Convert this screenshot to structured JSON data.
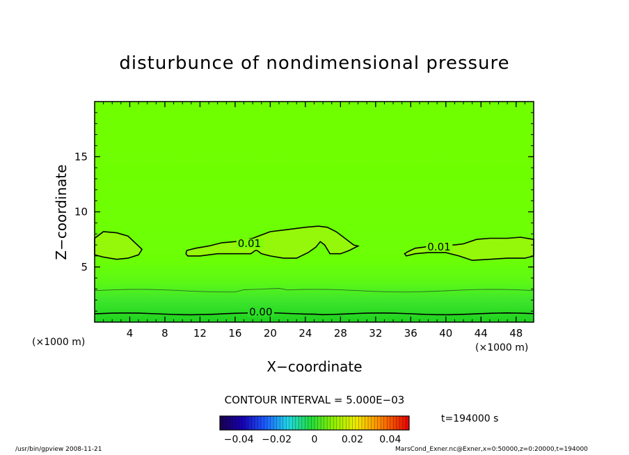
{
  "chart_data": {
    "type": "heatmap",
    "title": "disturbunce of nondimensional pressure",
    "xlabel": "X−coordinate",
    "ylabel": "Z−coordinate",
    "x_unit_left": "(×1000 m)",
    "x_unit_right": "(×1000 m)",
    "xlim": [
      0,
      50
    ],
    "ylim": [
      0,
      20
    ],
    "x_ticks": [
      4,
      8,
      12,
      16,
      20,
      24,
      28,
      32,
      36,
      40,
      44,
      48
    ],
    "y_ticks": [
      5,
      10,
      15
    ],
    "x_tick_labels": [
      "4",
      "8",
      "12",
      "16",
      "20",
      "24",
      "28",
      "32",
      "36",
      "40",
      "44",
      "48"
    ],
    "y_tick_labels": [
      "5",
      "10",
      "15"
    ],
    "contour_labels": [
      {
        "text": "0.01",
        "x": 16.3,
        "z": 7.0
      },
      {
        "text": "0.01",
        "x": 37.9,
        "z": 6.7
      },
      {
        "text": "0.00",
        "x": 17.6,
        "z": 0.8
      }
    ],
    "contour_interval": "CONTOUR INTERVAL = 5.000E−03",
    "time": "t=194000 s",
    "colorbar": {
      "min": -0.05,
      "max": 0.05,
      "ticks": [
        -0.04,
        -0.02,
        0,
        0.02,
        0.04
      ],
      "tick_labels": [
        "−0.04",
        "−0.02",
        "0",
        "0.02",
        "0.04"
      ]
    },
    "colors": {
      "field_low": "#1fd21f",
      "field_mid": "#46ea2c",
      "field_main": "#6cff04",
      "field_high": "#9bfb0c"
    }
  },
  "footer": {
    "left": "/usr/bin/gpview   2008-11-21",
    "right": "MarsCond_Exner.nc@Exner,x=0:50000,z=0:20000,t=194000"
  }
}
